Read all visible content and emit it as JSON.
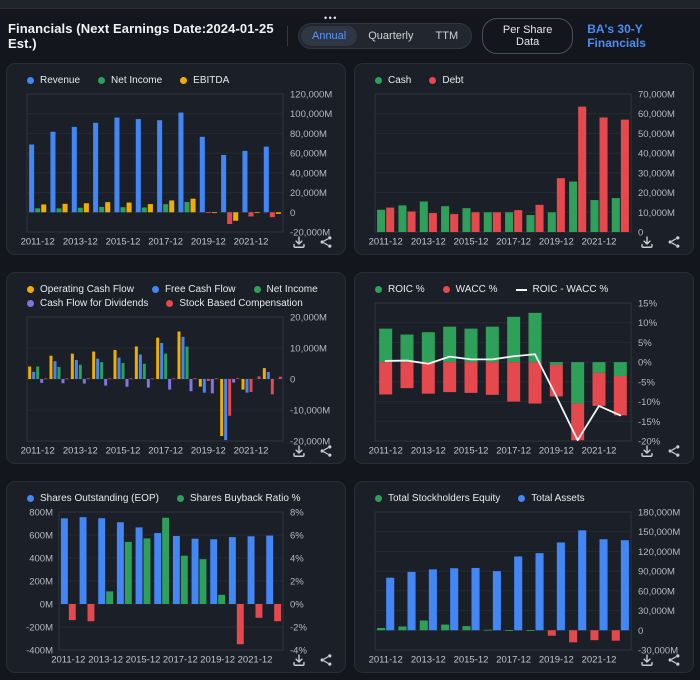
{
  "header": {
    "title": "Financials (Next Earnings Date:2024-01-25 Est.)",
    "menu_dots": "•••",
    "tabs": [
      {
        "label": "Annual",
        "active": true
      },
      {
        "label": "Quarterly",
        "active": false
      },
      {
        "label": "TTM",
        "active": false
      }
    ],
    "per_share_button": "Per Share Data",
    "link": "BA's 30-Y Financials"
  },
  "colors": {
    "blue": "#4287f5",
    "green": "#2fa05a",
    "yellow": "#f0af00",
    "red": "#e5484d",
    "purple": "#8273e6",
    "white": "#f2f4f6",
    "link_accent": "#4c8df5"
  },
  "panel_actions": [
    "download",
    "share"
  ],
  "chart_data": [
    {
      "name": "revenue-net-income-ebitda",
      "type": "bar",
      "categories": [
        "2011-12",
        "2012-12",
        "2013-12",
        "2014-12",
        "2015-12",
        "2016-12",
        "2017-12",
        "2018-12",
        "2019-12",
        "2020-12",
        "2021-12",
        "2022-12"
      ],
      "x_tick_labels": [
        "2011-12",
        "2013-12",
        "2015-12",
        "2017-12",
        "2019-12",
        "2021-12"
      ],
      "series": [
        {
          "name": "Revenue",
          "color": "blue",
          "values": [
            68735,
            81698,
            86623,
            90762,
            96114,
            94571,
            93392,
            101127,
            76559,
            58158,
            62286,
            66608
          ]
        },
        {
          "name": "Net Income",
          "color": "green",
          "negative_color": "red",
          "values": [
            4018,
            3900,
            4585,
            5446,
            5176,
            4895,
            8197,
            10460,
            -636,
            -11873,
            -4202,
            -4935
          ]
        },
        {
          "name": "EBITDA",
          "color": "yellow",
          "values": [
            7950,
            8600,
            9150,
            10300,
            9900,
            8300,
            12000,
            13800,
            -400,
            -8600,
            -760,
            -1570
          ]
        }
      ],
      "y_axis": {
        "min": -20000,
        "max": 120000,
        "tick_values": [
          120000,
          100000,
          80000,
          60000,
          40000,
          20000,
          0,
          -20000
        ],
        "tick_labels": [
          "120,000M",
          "100,000M",
          "80,000M",
          "60,000M",
          "40,000M",
          "20,000M",
          "0",
          "-20,000M"
        ]
      }
    },
    {
      "name": "cash-debt",
      "type": "bar",
      "categories": [
        "2011-12",
        "2012-12",
        "2013-12",
        "2014-12",
        "2015-12",
        "2016-12",
        "2017-12",
        "2018-12",
        "2019-12",
        "2020-12",
        "2021-12",
        "2022-12"
      ],
      "x_tick_labels": [
        "2011-12",
        "2013-12",
        "2015-12",
        "2017-12",
        "2019-12",
        "2021-12"
      ],
      "series": [
        {
          "name": "Cash",
          "color": "green",
          "values": [
            11300,
            13500,
            15500,
            13100,
            12100,
            10000,
            10000,
            8600,
            10000,
            25600,
            16200,
            17200
          ]
        },
        {
          "name": "Debt",
          "color": "red",
          "values": [
            12400,
            10400,
            9600,
            9100,
            10000,
            10000,
            11100,
            13800,
            27300,
            63600,
            58100,
            57000
          ]
        }
      ],
      "y_axis": {
        "min": 0,
        "max": 70000,
        "tick_values": [
          70000,
          60000,
          50000,
          40000,
          30000,
          20000,
          10000,
          0
        ],
        "tick_labels": [
          "70,000M",
          "60,000M",
          "50,000M",
          "40,000M",
          "30,000M",
          "20,000M",
          "10,000M",
          "0"
        ]
      }
    },
    {
      "name": "cash-flow",
      "type": "bar",
      "categories": [
        "2011-12",
        "2012-12",
        "2013-12",
        "2014-12",
        "2015-12",
        "2016-12",
        "2017-12",
        "2018-12",
        "2019-12",
        "2020-12",
        "2021-12",
        "2022-12"
      ],
      "x_tick_labels": [
        "2011-12",
        "2013-12",
        "2015-12",
        "2017-12",
        "2019-12",
        "2021-12"
      ],
      "series": [
        {
          "name": "Operating Cash Flow",
          "color": "yellow",
          "values": [
            4023,
            7508,
            8179,
            8858,
            9363,
            10499,
            13346,
            15322,
            -2446,
            -18410,
            -3416,
            3512
          ]
        },
        {
          "name": "Free Cash Flow",
          "color": "blue",
          "values": [
            2310,
            5751,
            6113,
            6573,
            6915,
            7886,
            11645,
            13614,
            -4410,
            -19713,
            -4396,
            2286
          ]
        },
        {
          "name": "Net Income",
          "color": "green",
          "negative_color": "red",
          "values": [
            4018,
            3900,
            4585,
            5446,
            5176,
            4895,
            8197,
            10460,
            -636,
            -11873,
            -4202,
            -4935
          ]
        },
        {
          "name": "Cash Flow for Dividends",
          "color": "purple",
          "values": [
            -1244,
            -1360,
            -1467,
            -2115,
            -2490,
            -2756,
            -3417,
            -3946,
            -4630,
            -1158,
            0,
            0
          ]
        },
        {
          "name": "Stock Based Compensation",
          "color": "red",
          "values": [
            186,
            190,
            228,
            195,
            189,
            190,
            202,
            202,
            212,
            250,
            833,
            725
          ]
        }
      ],
      "y_axis": {
        "min": -20000,
        "max": 20000,
        "tick_values": [
          20000,
          10000,
          0,
          -10000,
          -20000
        ],
        "tick_labels": [
          "20,000M",
          "10,000M",
          "0",
          "-10,000M",
          "-20,000M"
        ]
      }
    },
    {
      "name": "roic-wacc",
      "type": "bar-line",
      "stacked": true,
      "categories": [
        "2011-12",
        "2012-12",
        "2013-12",
        "2014-12",
        "2015-12",
        "2016-12",
        "2017-12",
        "2018-12",
        "2019-12",
        "2020-12",
        "2021-12",
        "2022-12"
      ],
      "x_tick_labels": [
        "2011-12",
        "2013-12",
        "2015-12",
        "2017-12",
        "2019-12",
        "2021-12"
      ],
      "series": [
        {
          "name": "ROIC %",
          "color": "green",
          "values": [
            8.5,
            7.0,
            7.6,
            9.0,
            8.5,
            9.0,
            11.5,
            12.5,
            -0.7,
            -10.5,
            -2.7,
            -3.5
          ]
        },
        {
          "name": "WACC %",
          "color": "red",
          "invert": true,
          "values": [
            8.2,
            6.6,
            8.0,
            7.6,
            7.8,
            8.3,
            10.0,
            10.5,
            8.0,
            9.3,
            8.4,
            10.0
          ]
        },
        {
          "name": "ROIC - WACC %",
          "color": "white",
          "type": "line",
          "values": [
            0.3,
            0.4,
            -0.4,
            1.4,
            0.7,
            0.7,
            1.5,
            2.0,
            -8.7,
            -19.8,
            -11.1,
            -13.5
          ]
        }
      ],
      "y_axis": {
        "min": -20,
        "max": 15,
        "tick_values": [
          15,
          10,
          5,
          0,
          -5,
          -10,
          -15,
          -20
        ],
        "tick_labels": [
          "15%",
          "10%",
          "5%",
          "0%",
          "-5%",
          "-10%",
          "-15%",
          "-20%"
        ]
      }
    },
    {
      "name": "shares-outstanding-buyback",
      "type": "bar",
      "categories": [
        "2011-12",
        "2012-12",
        "2013-12",
        "2014-12",
        "2015-12",
        "2016-12",
        "2017-12",
        "2018-12",
        "2019-12",
        "2020-12",
        "2021-12",
        "2022-12"
      ],
      "x_tick_labels": [
        "2011-12",
        "2013-12",
        "2015-12",
        "2017-12",
        "2019-12",
        "2021-12"
      ],
      "series": [
        {
          "name": "Shares Outstanding (EOP)",
          "color": "blue",
          "axis": "left",
          "values": [
            745,
            755,
            746,
            711,
            666,
            617,
            591,
            568,
            563,
            582,
            589,
            595
          ]
        },
        {
          "name": "Shares Buyback Ratio %",
          "color": "green",
          "negative_color": "red",
          "values": [
            -1.4,
            -1.5,
            1.1,
            5.4,
            5.7,
            7.5,
            4.2,
            3.9,
            0.8,
            -3.5,
            -1.2,
            -1.5
          ]
        }
      ],
      "y_axis_left": {
        "min": -400,
        "max": 800,
        "tick_values": [
          800,
          600,
          400,
          200,
          0,
          -200,
          -400
        ],
        "tick_labels": [
          "800M",
          "600M",
          "400M",
          "200M",
          "0M",
          "-200M",
          "-400M"
        ]
      },
      "y_axis": {
        "min": -4,
        "max": 8,
        "tick_values": [
          8,
          6,
          4,
          2,
          0,
          -2,
          -4
        ],
        "tick_labels": [
          "8%",
          "6%",
          "4%",
          "2%",
          "0%",
          "-2%",
          "-4%"
        ]
      }
    },
    {
      "name": "equity-total-assets",
      "type": "bar",
      "categories": [
        "2011-12",
        "2012-12",
        "2013-12",
        "2014-12",
        "2015-12",
        "2016-12",
        "2017-12",
        "2018-12",
        "2019-12",
        "2020-12",
        "2021-12",
        "2022-12"
      ],
      "x_tick_labels": [
        "2011-12",
        "2013-12",
        "2015-12",
        "2017-12",
        "2019-12",
        "2021-12"
      ],
      "series": [
        {
          "name": "Total Stockholders Equity",
          "color": "green",
          "negative_color": "red",
          "values": [
            3515,
            5867,
            14875,
            8665,
            6335,
            817,
            355,
            339,
            -8300,
            -18316,
            -14999,
            -15847
          ]
        },
        {
          "name": "Total Assets",
          "color": "blue",
          "values": [
            79986,
            88896,
            92663,
            94408,
            94940,
            89997,
            112362,
            117359,
            133625,
            152136,
            138552,
            137100
          ]
        }
      ],
      "y_axis": {
        "min": -30000,
        "max": 180000,
        "tick_values": [
          180000,
          150000,
          120000,
          90000,
          60000,
          30000,
          0,
          -30000
        ],
        "tick_labels": [
          "180,000M",
          "150,000M",
          "120,000M",
          "90,000M",
          "60,000M",
          "30,000M",
          "0",
          "-30,000M"
        ]
      }
    }
  ]
}
